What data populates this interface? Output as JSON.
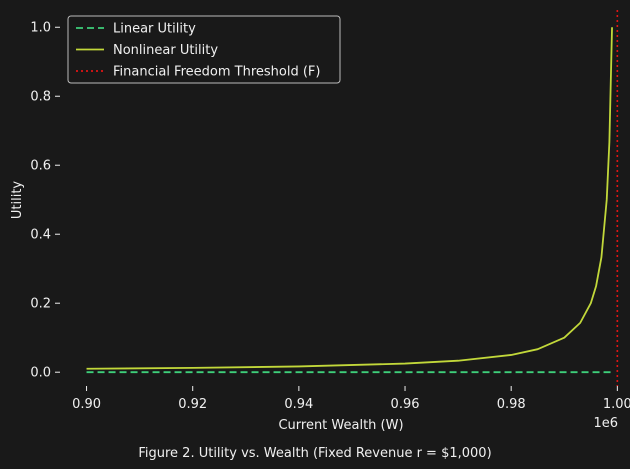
{
  "caption": "Figure 2. Utility vs. Wealth (Fixed Revenue r = $1,000)",
  "colors": {
    "background": "#191919",
    "linear": "#3ecf7a",
    "nonlinear": "#c2d83a",
    "threshold": "#e01515",
    "text": "#f0f0f0"
  },
  "chart_data": {
    "type": "line",
    "xlabel": "Current Wealth (W)",
    "ylabel": "Utility",
    "x_scale_label": "1e6",
    "xlim": [
      0.895,
      1.0005
    ],
    "ylim": [
      -0.04,
      1.05
    ],
    "x_ticks": [
      0.9,
      0.92,
      0.94,
      0.96,
      0.98,
      1.0
    ],
    "x_tick_labels": [
      "0.90",
      "0.92",
      "0.94",
      "0.96",
      "0.98",
      "1.00"
    ],
    "y_ticks": [
      0.0,
      0.2,
      0.4,
      0.6,
      0.8,
      1.0
    ],
    "y_tick_labels": [
      "0.0",
      "0.2",
      "0.4",
      "0.6",
      "0.8",
      "1.0"
    ],
    "grid": false,
    "legend_position": "top-left",
    "series": [
      {
        "name": "Linear Utility",
        "style": "dashed",
        "color": "#3ecf7a",
        "x": [
          0.9,
          0.999
        ],
        "y": [
          0.0,
          0.0
        ]
      },
      {
        "name": "Nonlinear Utility",
        "style": "solid",
        "color": "#c2d83a",
        "x": [
          0.9,
          0.92,
          0.94,
          0.96,
          0.97,
          0.98,
          0.985,
          0.99,
          0.993,
          0.995,
          0.996,
          0.997,
          0.998,
          0.9985,
          0.999
        ],
        "y": [
          0.01,
          0.0125,
          0.0167,
          0.025,
          0.0333,
          0.05,
          0.0667,
          0.1,
          0.143,
          0.2,
          0.25,
          0.333,
          0.5,
          0.667,
          1.0
        ]
      },
      {
        "name": "Financial Freedom Threshold (F)",
        "style": "dotted",
        "color": "#e01515",
        "orientation": "vertical",
        "x_value": 1.0
      }
    ]
  }
}
